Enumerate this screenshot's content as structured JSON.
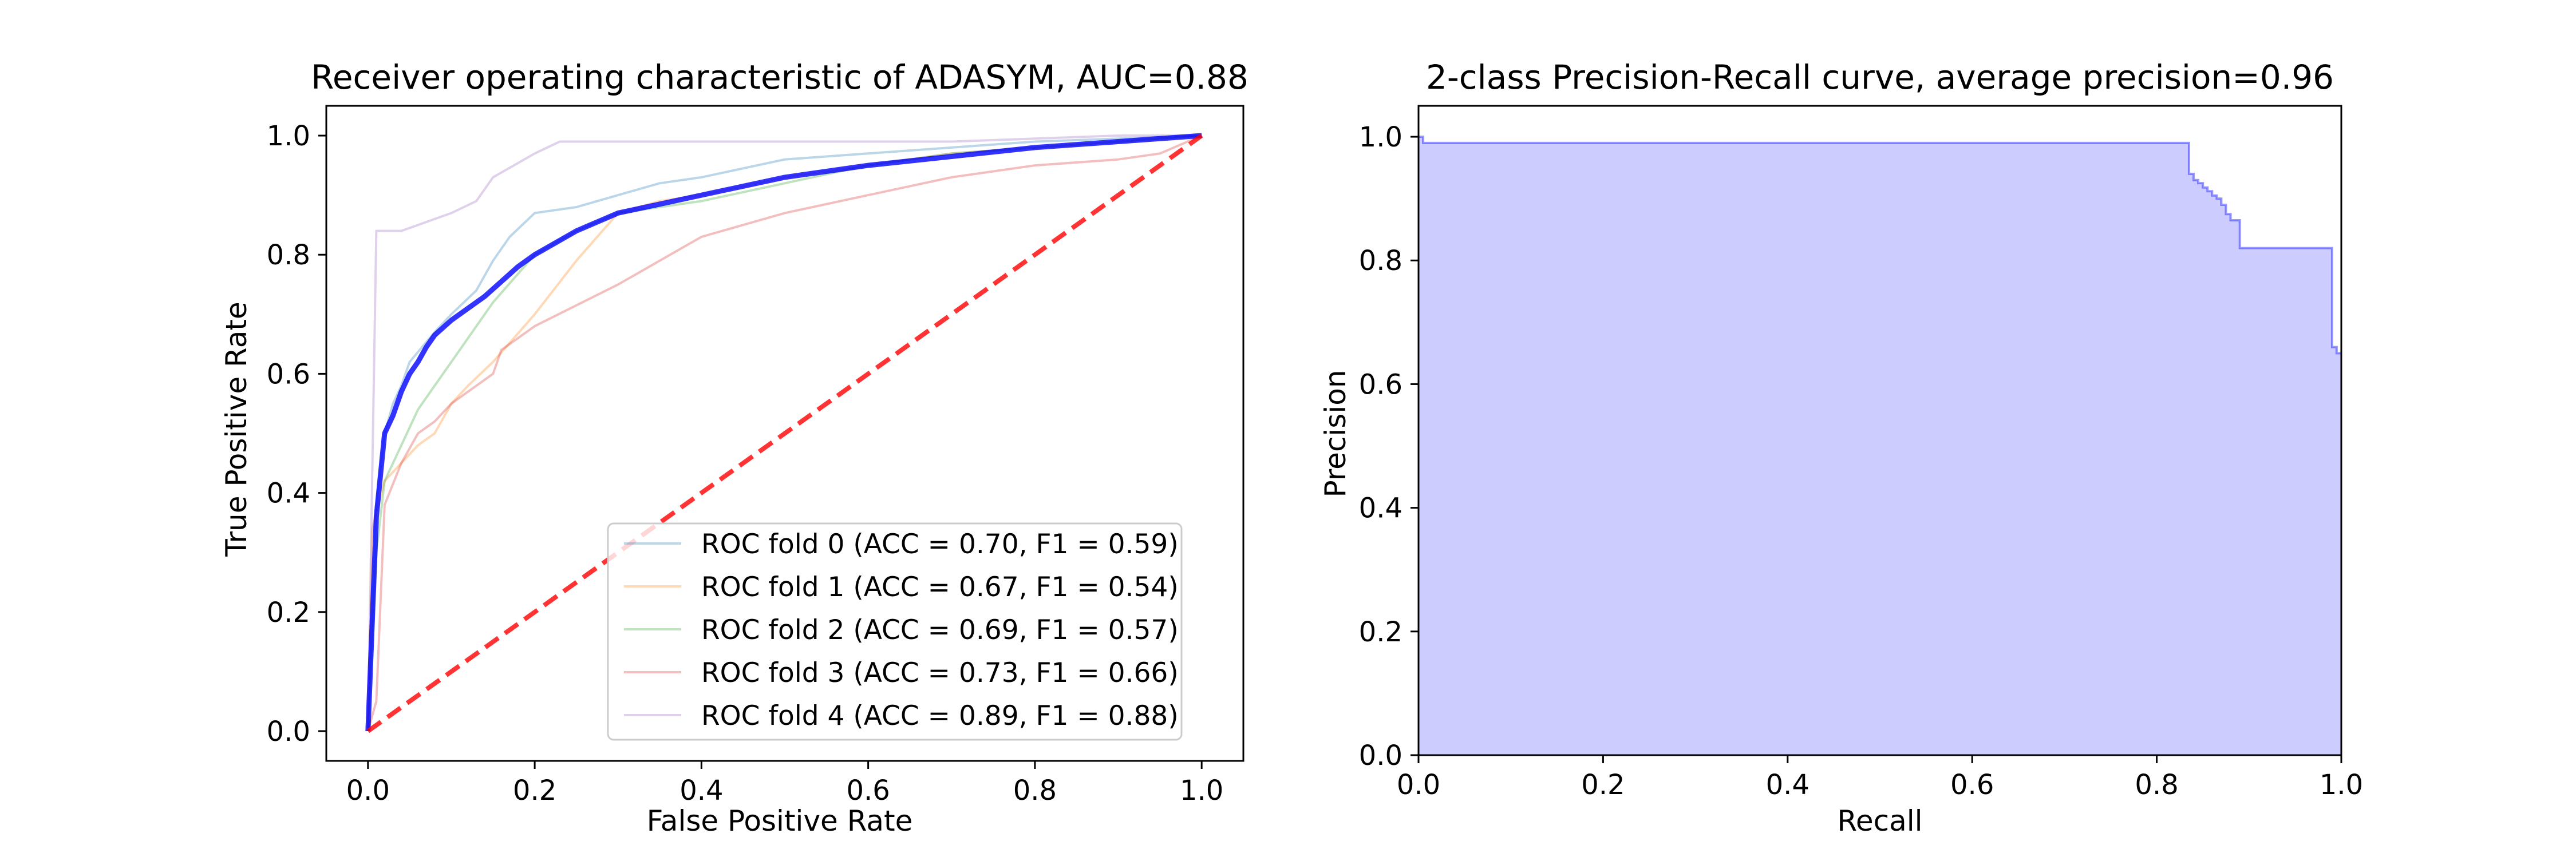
{
  "chart_data": [
    {
      "type": "line",
      "title": "Receiver operating characteristic of ADASYM, AUC=0.88",
      "xlabel": "False Positive Rate",
      "ylabel": "True Positive Rate",
      "xlim": [
        -0.05,
        1.05
      ],
      "ylim": [
        -0.05,
        1.05
      ],
      "xticks": [
        0.0,
        0.2,
        0.4,
        0.6,
        0.8,
        1.0
      ],
      "yticks": [
        0.0,
        0.2,
        0.4,
        0.6,
        0.8,
        1.0
      ],
      "xtick_labels": [
        "0.0",
        "0.2",
        "0.4",
        "0.6",
        "0.8",
        "1.0"
      ],
      "ytick_labels": [
        "0.0",
        "0.2",
        "0.4",
        "0.6",
        "0.8",
        "1.0"
      ],
      "grid": false,
      "legend_position": "lower-right",
      "series": [
        {
          "name": "ROC fold 0 (ACC = 0.70, F1 = 0.59)",
          "color": "#1f77b4",
          "opacity": 0.3,
          "x": [
            0.0,
            0.01,
            0.02,
            0.03,
            0.04,
            0.05,
            0.08,
            0.1,
            0.13,
            0.15,
            0.17,
            0.2,
            0.25,
            0.3,
            0.35,
            0.4,
            0.5,
            0.6,
            0.7,
            0.8,
            0.9,
            1.0
          ],
          "y": [
            0.0,
            0.38,
            0.5,
            0.55,
            0.58,
            0.62,
            0.67,
            0.7,
            0.74,
            0.79,
            0.83,
            0.87,
            0.88,
            0.9,
            0.92,
            0.93,
            0.96,
            0.97,
            0.98,
            0.99,
            0.995,
            1.0
          ]
        },
        {
          "name": "ROC fold 1 (ACC = 0.67, F1 = 0.54)",
          "color": "#ff7f0e",
          "opacity": 0.3,
          "x": [
            0.0,
            0.005,
            0.02,
            0.04,
            0.06,
            0.08,
            0.1,
            0.12,
            0.15,
            0.2,
            0.25,
            0.3,
            0.35,
            0.4,
            0.5,
            0.6,
            0.7,
            0.8,
            0.9,
            1.0
          ],
          "y": [
            0.0,
            0.34,
            0.42,
            0.45,
            0.48,
            0.5,
            0.55,
            0.58,
            0.62,
            0.7,
            0.79,
            0.87,
            0.89,
            0.9,
            0.93,
            0.95,
            0.97,
            0.98,
            0.99,
            1.0
          ]
        },
        {
          "name": "ROC fold 2 (ACC = 0.69, F1 = 0.57)",
          "color": "#2ca02c",
          "opacity": 0.3,
          "x": [
            0.0,
            0.01,
            0.02,
            0.04,
            0.06,
            0.08,
            0.1,
            0.12,
            0.15,
            0.2,
            0.25,
            0.3,
            0.35,
            0.4,
            0.5,
            0.6,
            0.7,
            0.8,
            0.9,
            1.0
          ],
          "y": [
            0.0,
            0.3,
            0.42,
            0.48,
            0.54,
            0.58,
            0.62,
            0.66,
            0.72,
            0.8,
            0.84,
            0.87,
            0.88,
            0.89,
            0.92,
            0.95,
            0.97,
            0.98,
            0.99,
            1.0
          ]
        },
        {
          "name": "ROC fold 3 (ACC = 0.73, F1 = 0.66)",
          "color": "#d62728",
          "opacity": 0.3,
          "x": [
            0.0,
            0.01,
            0.02,
            0.04,
            0.06,
            0.08,
            0.1,
            0.13,
            0.15,
            0.16,
            0.2,
            0.3,
            0.4,
            0.5,
            0.6,
            0.7,
            0.8,
            0.9,
            0.95,
            1.0
          ],
          "y": [
            0.0,
            0.05,
            0.38,
            0.45,
            0.5,
            0.52,
            0.55,
            0.58,
            0.6,
            0.64,
            0.68,
            0.75,
            0.83,
            0.87,
            0.9,
            0.93,
            0.95,
            0.96,
            0.97,
            1.0
          ]
        },
        {
          "name": "ROC fold 4 (ACC = 0.89, F1 = 0.88)",
          "color": "#9467bd",
          "opacity": 0.3,
          "x": [
            0.0,
            0.01,
            0.02,
            0.04,
            0.06,
            0.08,
            0.1,
            0.13,
            0.15,
            0.2,
            0.23,
            0.3,
            0.4,
            0.5,
            0.6,
            0.7,
            0.8,
            0.9,
            1.0
          ],
          "y": [
            0.0,
            0.84,
            0.84,
            0.84,
            0.85,
            0.86,
            0.87,
            0.89,
            0.93,
            0.97,
            0.99,
            0.99,
            0.99,
            0.99,
            0.99,
            0.99,
            0.995,
            1.0,
            1.0
          ]
        },
        {
          "name": "",
          "color": "#0000ff",
          "opacity": 0.8,
          "x": [
            0.0,
            0.01,
            0.02,
            0.03,
            0.04,
            0.05,
            0.06,
            0.07,
            0.08,
            0.1,
            0.12,
            0.14,
            0.16,
            0.18,
            0.2,
            0.25,
            0.3,
            0.35,
            0.4,
            0.45,
            0.5,
            0.55,
            0.6,
            0.7,
            0.8,
            0.9,
            1.0
          ],
          "y": [
            0.0,
            0.36,
            0.5,
            0.53,
            0.57,
            0.6,
            0.62,
            0.645,
            0.665,
            0.69,
            0.71,
            0.73,
            0.755,
            0.78,
            0.8,
            0.84,
            0.87,
            0.885,
            0.9,
            0.915,
            0.93,
            0.94,
            0.95,
            0.965,
            0.98,
            0.99,
            1.0
          ]
        },
        {
          "name": "",
          "color": "#ff0000",
          "opacity": 0.8,
          "dashed": true,
          "x": [
            0.0,
            1.0
          ],
          "y": [
            0.0,
            1.0
          ]
        }
      ]
    },
    {
      "type": "area",
      "title": "2-class Precision-Recall curve, average precision=0.96",
      "xlabel": "Recall",
      "ylabel": "Precision",
      "xlim": [
        0.0,
        1.0
      ],
      "ylim": [
        0.0,
        1.05
      ],
      "xticks": [
        0.0,
        0.2,
        0.4,
        0.6,
        0.8,
        1.0
      ],
      "yticks": [
        0.0,
        0.2,
        0.4,
        0.6,
        0.8,
        1.0
      ],
      "xtick_labels": [
        "0.0",
        "0.2",
        "0.4",
        "0.6",
        "0.8",
        "1.0"
      ],
      "ytick_labels": [
        "0.0",
        "0.2",
        "0.4",
        "0.6",
        "0.8",
        "1.0"
      ],
      "grid": false,
      "fill_color": "#0000ff",
      "fill_opacity": 0.2,
      "line_color": "#0000ff",
      "line_opacity": 0.4,
      "series": [
        {
          "name": "",
          "recall": [
            0.0,
            0.0,
            0.005,
            0.005,
            0.835,
            0.835,
            0.84,
            0.84,
            0.845,
            0.845,
            0.85,
            0.85,
            0.855,
            0.855,
            0.86,
            0.86,
            0.865,
            0.865,
            0.87,
            0.87,
            0.875,
            0.875,
            0.88,
            0.88,
            0.89,
            0.89,
            0.895,
            0.895,
            0.99,
            0.99,
            0.995,
            0.995,
            1.0
          ],
          "precision": [
            1.0,
            1.0,
            1.0,
            0.99,
            0.99,
            0.94,
            0.94,
            0.93,
            0.93,
            0.925,
            0.925,
            0.918,
            0.918,
            0.912,
            0.912,
            0.905,
            0.905,
            0.9,
            0.9,
            0.89,
            0.89,
            0.875,
            0.875,
            0.865,
            0.865,
            0.82,
            0.82,
            0.82,
            0.82,
            0.66,
            0.66,
            0.65,
            0.65
          ]
        }
      ]
    }
  ]
}
